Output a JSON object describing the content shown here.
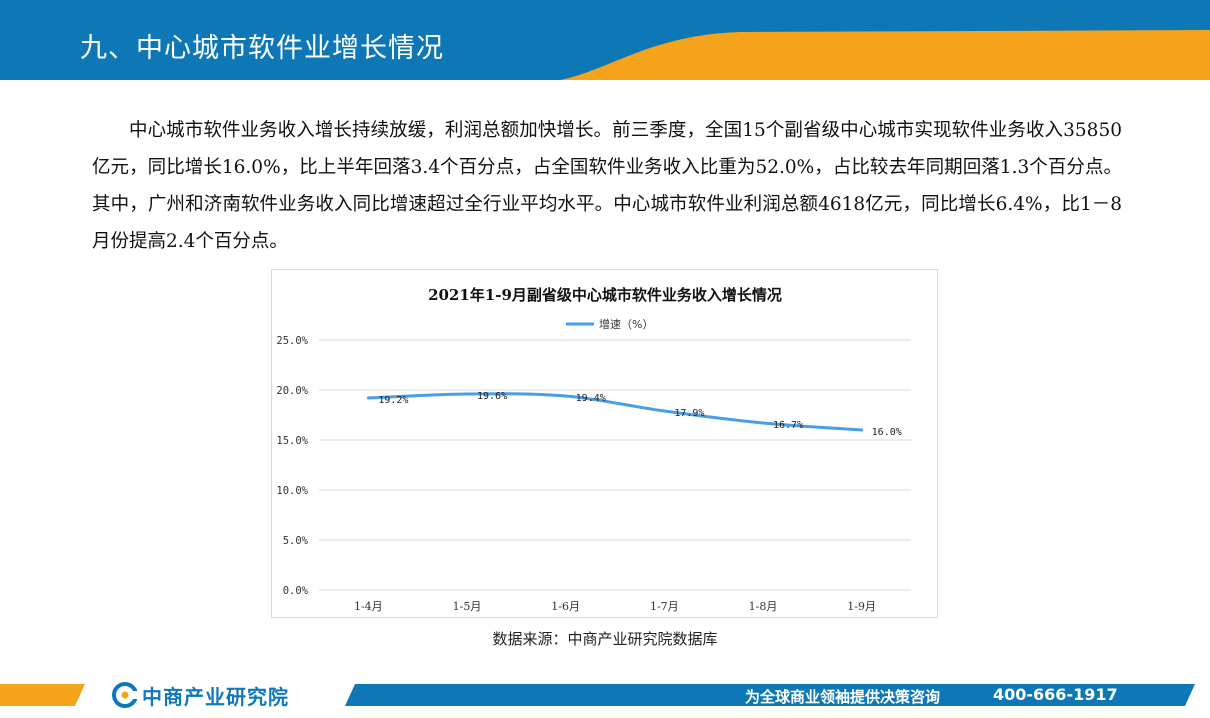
{
  "header": {
    "title": "九、中心城市软件业增长情况"
  },
  "paragraph": "中心城市软件业务收入增长持续放缓，利润总额加快增长。前三季度，全国15个副省级中心城市实现软件业务收入35850亿元，同比增长16.0%，比上半年回落3.4个百分点，占全国软件业务收入比重为52.0%，占比较去年同期回落1.3个百分点。其中，广州和济南软件业务收入同比增速超过全行业平均水平。中心城市软件业利润总额4618亿元，同比增长6.4%，比1－8月份提高2.4个百分点。",
  "chart_data": {
    "type": "line",
    "title": "2021年1-9月副省级中心城市软件业务收入增长情况",
    "categories": [
      "1-4月",
      "1-5月",
      "1-6月",
      "1-7月",
      "1-8月",
      "1-9月"
    ],
    "series": [
      {
        "name": "增速（%）",
        "values": [
          19.2,
          19.6,
          19.4,
          17.9,
          16.7,
          16.0
        ],
        "labels": [
          "19.2%",
          "19.6%",
          "19.4%",
          "17.9%",
          "16.7%",
          "16.0%"
        ],
        "color": "#4a9ee6"
      }
    ],
    "yticks": [
      "0.0%",
      "5.0%",
      "10.0%",
      "15.0%",
      "20.0%",
      "25.0%"
    ],
    "ylim": [
      0,
      25
    ],
    "grid": true,
    "legend": "top"
  },
  "source": "数据来源：中商产业研究院数据库",
  "footer": {
    "logo_text": "中商产业研究院",
    "slogan": "为全球商业领袖提供决策咨询",
    "phone": "400-666-1917"
  },
  "colors": {
    "brand_blue": "#0e78b6",
    "accent_orange": "#f5a31a",
    "line_blue": "#4a9ee6"
  }
}
